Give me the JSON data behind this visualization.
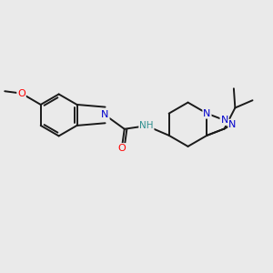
{
  "bg": "#eaeaea",
  "bond_color": "#1a1a1a",
  "O_color": "#ff0000",
  "N_color": "#0000cc",
  "NH_color": "#2f8f8f",
  "lw": 1.4,
  "figsize": [
    3.0,
    3.0
  ],
  "dpi": 100,
  "xlim": [
    0,
    10
  ],
  "ylim": [
    0,
    10
  ]
}
